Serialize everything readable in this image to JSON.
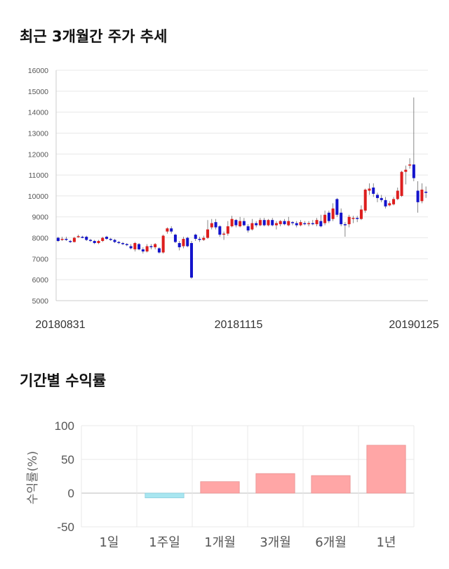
{
  "titles": {
    "candle": "최근 3개월간 주가 추세",
    "returns": "기간별 수익률"
  },
  "colors": {
    "up": "#dd1e1e",
    "down": "#1414cc",
    "pos_bar": "#ffa6a6",
    "neg_bar": "#a8e6f0",
    "grid": "#e8e8e8"
  },
  "chart_data": [
    {
      "type": "candlestick",
      "title": "최근 3개월간 주가 추세",
      "ylim": [
        5000,
        16000
      ],
      "yticks": [
        "16000",
        "15000",
        "14000",
        "13000",
        "12000",
        "11000",
        "10000",
        "9000",
        "8000",
        "7000",
        "6000",
        "5000"
      ],
      "xtick_labels": [
        "20180831",
        "20181115",
        "20190125"
      ],
      "grid": true,
      "values": [
        [
          8000,
          7850,
          8050,
          7800
        ],
        [
          7900,
          7950,
          8050,
          7850
        ],
        [
          7950,
          7900,
          8050,
          7850
        ],
        [
          7850,
          7800,
          7900,
          7750
        ],
        [
          7800,
          8000,
          8050,
          7780
        ],
        [
          8050,
          8080,
          8150,
          8000
        ],
        [
          8050,
          8020,
          8100,
          7980
        ],
        [
          8050,
          7900,
          8100,
          7850
        ],
        [
          7900,
          7850,
          7950,
          7800
        ],
        [
          7850,
          7750,
          7900,
          7700
        ],
        [
          7750,
          7850,
          7900,
          7700
        ],
        [
          7850,
          8000,
          8050,
          7800
        ],
        [
          8050,
          7950,
          8100,
          7900
        ],
        [
          7950,
          7900,
          8000,
          7850
        ],
        [
          7900,
          7800,
          7950,
          7750
        ],
        [
          7800,
          7750,
          7850,
          7700
        ],
        [
          7750,
          7700,
          7800,
          7650
        ],
        [
          7700,
          7650,
          7750,
          7600
        ],
        [
          7600,
          7500,
          7700,
          7450
        ],
        [
          7450,
          7750,
          7800,
          7350
        ],
        [
          7700,
          7450,
          7750,
          7400
        ],
        [
          7450,
          7350,
          7550,
          7250
        ],
        [
          7350,
          7600,
          7700,
          7300
        ],
        [
          7600,
          7550,
          7700,
          7450
        ],
        [
          7550,
          7700,
          7750,
          7450
        ],
        [
          7500,
          7300,
          7550,
          7250
        ],
        [
          7300,
          8100,
          8150,
          7250
        ],
        [
          8300,
          8450,
          8500,
          8200
        ],
        [
          8450,
          8300,
          8550,
          8200
        ],
        [
          8150,
          7800,
          8200,
          7750
        ],
        [
          7750,
          7550,
          7850,
          7400
        ],
        [
          7600,
          7950,
          8050,
          7500
        ],
        [
          8000,
          7600,
          8050,
          7550
        ],
        [
          7750,
          6100,
          7850,
          6050
        ],
        [
          8150,
          7950,
          8200,
          7850
        ],
        [
          7950,
          7900,
          8050,
          7800
        ],
        [
          7900,
          8000,
          8100,
          7850
        ],
        [
          8000,
          8400,
          8850,
          7950
        ],
        [
          8500,
          8700,
          8900,
          8400
        ],
        [
          8750,
          8500,
          8900,
          8400
        ],
        [
          8550,
          8150,
          8600,
          8050
        ],
        [
          8150,
          8200,
          8300,
          7900
        ],
        [
          8200,
          8550,
          8800,
          8100
        ],
        [
          8550,
          8900,
          9050,
          8500
        ],
        [
          8850,
          8600,
          8900,
          8500
        ],
        [
          8550,
          8800,
          9000,
          8500
        ],
        [
          8800,
          8600,
          8950,
          8550
        ],
        [
          8550,
          8350,
          8650,
          8250
        ],
        [
          8400,
          8700,
          8900,
          8350
        ],
        [
          8700,
          8600,
          8800,
          8500
        ],
        [
          8600,
          8850,
          8950,
          8550
        ],
        [
          8850,
          8600,
          8950,
          8550
        ],
        [
          8600,
          8850,
          8900,
          8550
        ],
        [
          8850,
          8600,
          8950,
          8550
        ],
        [
          8600,
          8700,
          8800,
          8400
        ],
        [
          8650,
          8800,
          8850,
          8550
        ],
        [
          8800,
          8650,
          8900,
          8600
        ],
        [
          8600,
          8800,
          9000,
          8550
        ],
        [
          8750,
          8700,
          8800,
          8600
        ],
        [
          8700,
          8600,
          8800,
          8500
        ],
        [
          8600,
          8750,
          8850,
          8550
        ],
        [
          8700,
          8650,
          8800,
          8600
        ],
        [
          8650,
          8700,
          8800,
          8550
        ],
        [
          8700,
          8650,
          8850,
          8600
        ],
        [
          8650,
          8850,
          8950,
          8550
        ],
        [
          8800,
          8550,
          9100,
          8500
        ],
        [
          8700,
          9100,
          9300,
          8600
        ],
        [
          9200,
          8800,
          9300,
          8700
        ],
        [
          8900,
          9400,
          9650,
          8800
        ],
        [
          9850,
          9100,
          9900,
          9000
        ],
        [
          9200,
          8650,
          9400,
          8550
        ],
        [
          8650,
          8600,
          8750,
          8050
        ],
        [
          8650,
          9000,
          9100,
          8500
        ],
        [
          8950,
          8950,
          9050,
          8700
        ],
        [
          8950,
          8900,
          9050,
          8750
        ],
        [
          8900,
          9350,
          9550,
          8850
        ],
        [
          9300,
          10300,
          10350,
          9200
        ],
        [
          10250,
          10350,
          10600,
          10050
        ],
        [
          10400,
          10100,
          10600,
          9950
        ],
        [
          10050,
          9900,
          10150,
          9700
        ],
        [
          9900,
          9800,
          10050,
          9700
        ],
        [
          9800,
          9500,
          9950,
          9400
        ],
        [
          9550,
          9650,
          9750,
          9500
        ],
        [
          9600,
          9850,
          9950,
          9550
        ],
        [
          9850,
          10250,
          10400,
          9800
        ],
        [
          10000,
          11150,
          11200,
          9950
        ],
        [
          11150,
          11250,
          11450,
          10550
        ],
        [
          11500,
          11500,
          11800,
          11300
        ],
        [
          11500,
          10850,
          14700,
          10700
        ],
        [
          10250,
          9700,
          10700,
          9200
        ],
        [
          9750,
          10300,
          10600,
          9650
        ],
        [
          10200,
          10150,
          10450,
          9900
        ]
      ]
    },
    {
      "type": "bar",
      "title": "기간별 수익률",
      "ylabel": "수익률(%)",
      "ylim": [
        -50,
        100
      ],
      "yticks": [
        "100",
        "50",
        "0",
        "-50"
      ],
      "categories": [
        "1일",
        "1주일",
        "1개월",
        "3개월",
        "6개월",
        "1년"
      ],
      "values": [
        0,
        -7,
        17,
        29,
        26,
        71
      ],
      "grid": true
    }
  ]
}
